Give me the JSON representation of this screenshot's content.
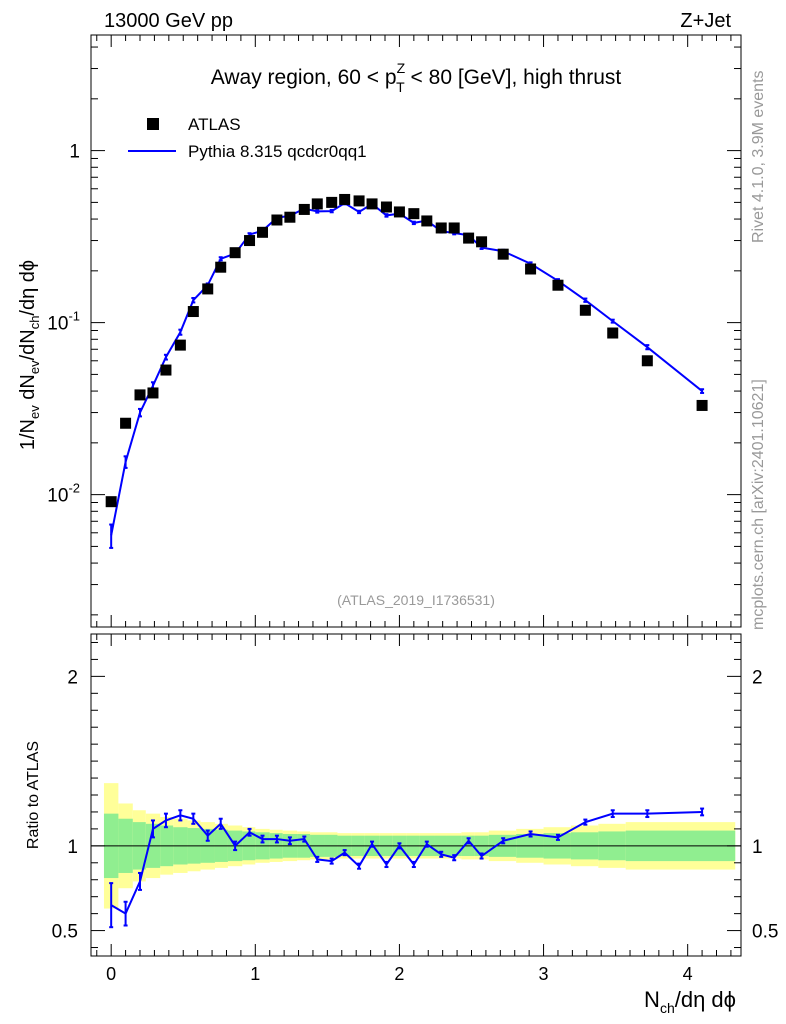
{
  "header": {
    "energy_label": "13000 GeV pp",
    "process_label": "Z+Jet"
  },
  "side_labels": {
    "rivet": "Rivet 4.1.0,  3.9M events",
    "mcplots": "mcplots.cern.ch [arXiv:2401.10621]"
  },
  "chart_data": [
    {
      "type": "scatter",
      "panel": "main",
      "title": "Away region, 60 < p_T^Z < 80 [GeV], high thrust",
      "ylabel": "1/N_ev dN_ev/dN_ch/dη dϕ",
      "yscale": "log",
      "ylim": [
        0.0017,
        4.7
      ],
      "xlim": [
        -0.14,
        4.37
      ],
      "analysis_label": "(ATLAS_2019_I1736531)",
      "legend_position": "top-left",
      "y_tick_labels": [
        "10^-2",
        "10^-1",
        "1"
      ],
      "series": [
        {
          "name": "ATLAS",
          "style": "black-square-markers",
          "color": "#000000",
          "x": [
            0.0,
            0.1,
            0.2,
            0.29,
            0.38,
            0.48,
            0.57,
            0.67,
            0.76,
            0.86,
            0.96,
            1.05,
            1.15,
            1.24,
            1.34,
            1.43,
            1.53,
            1.62,
            1.72,
            1.81,
            1.91,
            2.0,
            2.1,
            2.19,
            2.29,
            2.38,
            2.48,
            2.57,
            2.72,
            2.91,
            3.1,
            3.29,
            3.48,
            3.72,
            4.1
          ],
          "y": [
            0.0091,
            0.026,
            0.038,
            0.039,
            0.053,
            0.074,
            0.116,
            0.157,
            0.21,
            0.255,
            0.3,
            0.335,
            0.395,
            0.41,
            0.455,
            0.49,
            0.5,
            0.52,
            0.51,
            0.49,
            0.47,
            0.44,
            0.43,
            0.39,
            0.355,
            0.355,
            0.31,
            0.295,
            0.25,
            0.205,
            0.165,
            0.118,
            0.087,
            0.06,
            0.033
          ]
        },
        {
          "name": "Pythia 8.315 qcdcr0qq1",
          "style": "blue-line-with-error-bars",
          "color": "#0000ff",
          "x": [
            0.0,
            0.1,
            0.2,
            0.29,
            0.38,
            0.48,
            0.57,
            0.67,
            0.76,
            0.86,
            0.96,
            1.05,
            1.15,
            1.24,
            1.34,
            1.43,
            1.53,
            1.62,
            1.72,
            1.81,
            1.91,
            2.0,
            2.1,
            2.19,
            2.29,
            2.38,
            2.48,
            2.57,
            2.72,
            2.91,
            3.1,
            3.29,
            3.48,
            3.72,
            4.1
          ],
          "y": [
            0.0058,
            0.0155,
            0.03,
            0.043,
            0.063,
            0.088,
            0.135,
            0.165,
            0.235,
            0.252,
            0.325,
            0.342,
            0.407,
            0.418,
            0.46,
            0.443,
            0.445,
            0.495,
            0.44,
            0.49,
            0.42,
            0.43,
            0.38,
            0.392,
            0.34,
            0.332,
            0.322,
            0.273,
            0.26,
            0.22,
            0.175,
            0.135,
            0.102,
            0.072,
            0.04
          ],
          "yerr": [
            0.0009,
            0.0012,
            0.0015,
            0.002,
            0.002,
            0.003,
            0.004,
            0.004,
            0.005,
            0.005,
            0.006,
            0.006,
            0.007,
            0.007,
            0.007,
            0.007,
            0.007,
            0.008,
            0.007,
            0.008,
            0.007,
            0.007,
            0.006,
            0.006,
            0.006,
            0.006,
            0.006,
            0.005,
            0.005,
            0.004,
            0.004,
            0.003,
            0.002,
            0.002,
            0.001
          ]
        }
      ]
    },
    {
      "type": "line",
      "panel": "ratio",
      "ylabel": "Ratio to ATLAS",
      "xlabel": "N_ch/dη dϕ",
      "ylim": [
        0.35,
        2.25
      ],
      "xlim": [
        -0.14,
        4.37
      ],
      "x_tick_labels": [
        "0",
        "1",
        "2",
        "3",
        "4"
      ],
      "y_tick_labels": [
        "0.5",
        "1",
        "2"
      ],
      "reference_line": 1.0,
      "bands": {
        "bin_edges": [
          -0.05,
          0.05,
          0.15,
          0.24,
          0.34,
          0.43,
          0.53,
          0.62,
          0.72,
          0.81,
          0.91,
          1.0,
          1.1,
          1.19,
          1.29,
          1.38,
          1.48,
          1.57,
          1.67,
          1.76,
          1.86,
          1.95,
          2.05,
          2.14,
          2.24,
          2.33,
          2.43,
          2.52,
          2.62,
          2.81,
          3.0,
          3.19,
          3.38,
          3.57,
          3.86,
          4.33
        ],
        "stat_color": "#90ee90",
        "total_color": "#ffff99",
        "stat": [
          0.19,
          0.16,
          0.14,
          0.13,
          0.12,
          0.11,
          0.105,
          0.1,
          0.095,
          0.09,
          0.085,
          0.08,
          0.075,
          0.07,
          0.07,
          0.065,
          0.065,
          0.06,
          0.06,
          0.06,
          0.06,
          0.06,
          0.06,
          0.06,
          0.06,
          0.06,
          0.06,
          0.06,
          0.065,
          0.07,
          0.075,
          0.08,
          0.085,
          0.09,
          0.09
        ],
        "total": [
          0.37,
          0.25,
          0.21,
          0.19,
          0.17,
          0.16,
          0.15,
          0.14,
          0.13,
          0.12,
          0.11,
          0.1,
          0.095,
          0.09,
          0.085,
          0.08,
          0.08,
          0.075,
          0.075,
          0.075,
          0.075,
          0.075,
          0.075,
          0.075,
          0.075,
          0.075,
          0.08,
          0.08,
          0.09,
          0.1,
          0.11,
          0.12,
          0.13,
          0.14,
          0.14
        ]
      },
      "series": [
        {
          "name": "Pythia 8.315 qcdcr0qq1 / ATLAS",
          "color": "#0000ff",
          "x": [
            0.0,
            0.1,
            0.2,
            0.29,
            0.38,
            0.48,
            0.57,
            0.67,
            0.76,
            0.86,
            0.96,
            1.05,
            1.15,
            1.24,
            1.34,
            1.43,
            1.53,
            1.62,
            1.72,
            1.81,
            1.91,
            2.0,
            2.1,
            2.19,
            2.29,
            2.38,
            2.48,
            2.57,
            2.72,
            2.91,
            3.1,
            3.29,
            3.48,
            3.72,
            4.1
          ],
          "y": [
            0.65,
            0.6,
            0.79,
            1.1,
            1.15,
            1.18,
            1.16,
            1.06,
            1.13,
            1.0,
            1.08,
            1.04,
            1.04,
            1.03,
            1.04,
            0.92,
            0.91,
            0.96,
            0.88,
            1.01,
            0.89,
            1.0,
            0.89,
            1.01,
            0.95,
            0.93,
            1.03,
            0.94,
            1.03,
            1.07,
            1.05,
            1.14,
            1.19,
            1.19,
            1.2
          ],
          "yerr": [
            0.13,
            0.07,
            0.05,
            0.05,
            0.04,
            0.03,
            0.03,
            0.03,
            0.03,
            0.025,
            0.02,
            0.02,
            0.02,
            0.02,
            0.015,
            0.015,
            0.015,
            0.015,
            0.015,
            0.015,
            0.015,
            0.015,
            0.015,
            0.015,
            0.015,
            0.015,
            0.015,
            0.015,
            0.015,
            0.015,
            0.015,
            0.015,
            0.02,
            0.02,
            0.02
          ]
        }
      ]
    }
  ]
}
